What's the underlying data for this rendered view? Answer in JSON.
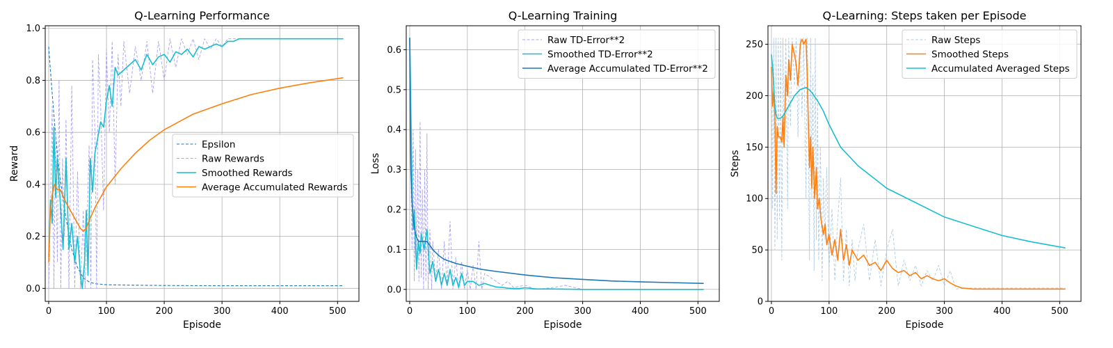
{
  "chart_data": [
    {
      "type": "line",
      "title": "Q-Learning Performance",
      "xlabel": "Episode",
      "ylabel": "Reward",
      "xlim": [
        -6,
        537
      ],
      "ylim": [
        -0.05,
        1.01
      ],
      "xticks": [
        0,
        100,
        200,
        300,
        400,
        500
      ],
      "yticks": [
        0.0,
        0.2,
        0.4,
        0.6,
        0.8,
        1.0
      ],
      "ytick_format": "fixed1",
      "grid": true,
      "legend_position": "center-right",
      "series": [
        {
          "name": "Epsilon",
          "color": "#1f77b4",
          "style": "dashed",
          "x": [
            0,
            5,
            10,
            15,
            20,
            30,
            40,
            50,
            60,
            70,
            80,
            100,
            150,
            200,
            300,
            400,
            510
          ],
          "y": [
            0.93,
            0.78,
            0.64,
            0.52,
            0.42,
            0.27,
            0.15,
            0.08,
            0.04,
            0.025,
            0.018,
            0.014,
            0.012,
            0.011,
            0.01,
            0.01,
            0.01
          ]
        },
        {
          "name": "Raw Rewards",
          "color": "#a7a0f5",
          "style": "dashed-thin",
          "x": [
            0,
            3,
            6,
            9,
            12,
            15,
            18,
            21,
            24,
            27,
            30,
            35,
            40,
            45,
            50,
            55,
            60,
            63,
            66,
            70,
            73,
            76,
            80,
            83,
            86,
            90,
            95,
            100,
            105,
            110,
            115,
            120,
            125,
            130,
            140,
            150,
            160,
            170,
            180,
            190,
            200,
            210,
            220,
            230,
            240,
            250,
            260,
            270,
            280,
            290,
            300,
            310,
            320,
            330,
            340,
            360,
            380,
            400,
            420,
            440,
            460,
            480,
            500,
            510
          ],
          "y": [
            0.0,
            0.3,
            0.7,
            0.0,
            0.6,
            0.1,
            0.8,
            0.0,
            0.5,
            0.2,
            0.65,
            0.0,
            0.78,
            0.0,
            0.45,
            0.0,
            0.3,
            0.0,
            0.2,
            0.55,
            0.0,
            0.88,
            0.6,
            0.0,
            0.9,
            0.7,
            0.3,
            0.92,
            0.6,
            0.95,
            0.4,
            0.9,
            0.7,
            0.95,
            0.75,
            0.93,
            0.8,
            0.95,
            0.75,
            0.95,
            0.8,
            0.96,
            0.85,
            0.96,
            0.9,
            0.96,
            0.88,
            0.96,
            0.92,
            0.96,
            0.93,
            0.96,
            0.96,
            0.96,
            0.96,
            0.96,
            0.96,
            0.96,
            0.96,
            0.96,
            0.96,
            0.96,
            0.96,
            0.96
          ]
        },
        {
          "name": "Smoothed Rewards",
          "color": "#17becf",
          "style": "solid",
          "x": [
            0,
            3,
            6,
            9,
            12,
            15,
            18,
            21,
            25,
            30,
            35,
            40,
            45,
            50,
            55,
            58,
            62,
            65,
            68,
            72,
            76,
            80,
            85,
            90,
            95,
            100,
            105,
            110,
            115,
            120,
            130,
            140,
            150,
            160,
            170,
            180,
            190,
            200,
            210,
            220,
            230,
            240,
            250,
            260,
            270,
            280,
            290,
            300,
            310,
            320,
            330,
            340,
            360,
            380,
            400,
            420,
            440,
            460,
            480,
            500,
            510
          ],
          "y": [
            0.12,
            0.34,
            0.25,
            0.62,
            0.35,
            0.5,
            0.4,
            0.3,
            0.15,
            0.5,
            0.15,
            0.25,
            0.1,
            0.2,
            0.05,
            0.0,
            0.1,
            0.3,
            0.05,
            0.5,
            0.37,
            0.52,
            0.58,
            0.64,
            0.62,
            0.72,
            0.78,
            0.7,
            0.85,
            0.82,
            0.84,
            0.86,
            0.88,
            0.84,
            0.9,
            0.86,
            0.89,
            0.9,
            0.87,
            0.91,
            0.9,
            0.92,
            0.89,
            0.93,
            0.92,
            0.93,
            0.94,
            0.93,
            0.95,
            0.95,
            0.96,
            0.96,
            0.96,
            0.96,
            0.96,
            0.96,
            0.96,
            0.96,
            0.96,
            0.96,
            0.96
          ]
        },
        {
          "name": "Average Accumulated Rewards",
          "color": "#ff7f0e",
          "style": "solid",
          "x": [
            0,
            3,
            6,
            10,
            15,
            20,
            30,
            40,
            50,
            55,
            60,
            65,
            70,
            80,
            90,
            100,
            125,
            150,
            175,
            200,
            250,
            300,
            350,
            400,
            450,
            510
          ],
          "y": [
            0.1,
            0.3,
            0.36,
            0.4,
            0.38,
            0.38,
            0.33,
            0.29,
            0.25,
            0.23,
            0.22,
            0.23,
            0.26,
            0.31,
            0.35,
            0.39,
            0.46,
            0.52,
            0.57,
            0.61,
            0.67,
            0.71,
            0.745,
            0.77,
            0.79,
            0.81
          ]
        }
      ]
    },
    {
      "type": "line",
      "title": "Q-Learning Training",
      "xlabel": "Episode",
      "ylabel": "Loss",
      "xlim": [
        -6,
        537
      ],
      "ylim": [
        -0.03,
        0.66
      ],
      "xticks": [
        0,
        100,
        200,
        300,
        400,
        500
      ],
      "yticks": [
        0.0,
        0.1,
        0.2,
        0.3,
        0.4,
        0.5,
        0.6
      ],
      "ytick_format": "fixed1",
      "grid": true,
      "legend_position": "top-right",
      "series": [
        {
          "name": "Raw TD-Error**2",
          "color": "#a7a0f5",
          "style": "dashed-thin",
          "x": [
            0,
            2,
            4,
            6,
            8,
            10,
            12,
            14,
            16,
            18,
            20,
            22,
            24,
            26,
            28,
            30,
            32,
            35,
            38,
            40,
            45,
            50,
            55,
            60,
            65,
            70,
            75,
            80,
            85,
            90,
            95,
            100,
            105,
            110,
            115,
            120,
            125,
            130,
            140,
            150,
            160,
            170,
            180,
            200,
            220,
            250,
            270,
            300,
            350,
            400,
            450,
            510
          ],
          "y": [
            0.62,
            0.3,
            0.1,
            0.4,
            0.02,
            0.35,
            0.05,
            0.3,
            0.02,
            0.42,
            0.03,
            0.25,
            0.0,
            0.3,
            0.02,
            0.39,
            0.0,
            0.15,
            0.0,
            0.12,
            0.02,
            0.1,
            0.0,
            0.12,
            0.01,
            0.17,
            0.0,
            0.08,
            0.0,
            0.07,
            0.0,
            0.05,
            0.0,
            0.06,
            0.0,
            0.12,
            0.0,
            0.04,
            0.03,
            0.02,
            0.01,
            0.02,
            0.005,
            0.01,
            0.0,
            0.005,
            0.01,
            0.0,
            0.0,
            0.0,
            0.0,
            0.0
          ]
        },
        {
          "name": "Smoothed TD-Error**2",
          "color": "#17becf",
          "style": "solid",
          "x": [
            0,
            1,
            2,
            3,
            4,
            5,
            6,
            8,
            10,
            12,
            15,
            18,
            20,
            25,
            30,
            35,
            40,
            45,
            50,
            55,
            60,
            65,
            70,
            75,
            80,
            85,
            90,
            95,
            100,
            110,
            120,
            130,
            140,
            150,
            160,
            170,
            180,
            190,
            200,
            220,
            250,
            300,
            350,
            400,
            450,
            510
          ],
          "y": [
            0.63,
            0.55,
            0.45,
            0.35,
            0.26,
            0.2,
            0.15,
            0.2,
            0.11,
            0.05,
            0.12,
            0.09,
            0.14,
            0.1,
            0.15,
            0.04,
            0.07,
            0.02,
            0.05,
            0.01,
            0.04,
            0.01,
            0.05,
            0.01,
            0.03,
            0.005,
            0.04,
            0.01,
            0.02,
            0.02,
            0.01,
            0.015,
            0.01,
            0.006,
            0.005,
            0.003,
            0.002,
            0.002,
            0.004,
            0.001,
            0.001,
            0.0,
            0.0,
            0.0,
            0.0,
            0.0
          ]
        },
        {
          "name": "Average Accumulated TD-Error**2",
          "color": "#1f77b4",
          "style": "solid",
          "x": [
            0,
            1,
            2,
            4,
            6,
            8,
            10,
            12,
            15,
            20,
            25,
            30,
            40,
            50,
            60,
            80,
            100,
            125,
            150,
            200,
            250,
            300,
            350,
            400,
            450,
            510
          ],
          "y": [
            0.63,
            0.4,
            0.3,
            0.22,
            0.18,
            0.16,
            0.14,
            0.13,
            0.12,
            0.12,
            0.12,
            0.12,
            0.1,
            0.085,
            0.075,
            0.065,
            0.058,
            0.05,
            0.045,
            0.036,
            0.029,
            0.025,
            0.021,
            0.019,
            0.017,
            0.015
          ]
        }
      ]
    },
    {
      "type": "line",
      "title": "Q-Learning: Steps taken per Episode",
      "xlabel": "Episode",
      "ylabel": "Steps",
      "xlim": [
        -6,
        537
      ],
      "ylim": [
        0,
        268
      ],
      "xticks": [
        0,
        100,
        200,
        300,
        400,
        500
      ],
      "yticks": [
        0,
        50,
        100,
        150,
        200,
        250
      ],
      "ytick_format": "int",
      "grid": true,
      "legend_position": "top-right",
      "series": [
        {
          "name": "Raw Steps",
          "color": "#aecbe6",
          "style": "dashed-thin",
          "x": [
            0,
            2,
            4,
            6,
            8,
            10,
            12,
            14,
            16,
            18,
            20,
            22,
            25,
            28,
            30,
            33,
            36,
            40,
            43,
            46,
            50,
            53,
            56,
            60,
            62,
            64,
            66,
            68,
            70,
            72,
            74,
            76,
            78,
            80,
            82,
            85,
            88,
            90,
            93,
            96,
            100,
            105,
            110,
            115,
            120,
            125,
            130,
            135,
            140,
            145,
            150,
            160,
            170,
            180,
            190,
            200,
            210,
            220,
            230,
            240,
            250,
            260,
            270,
            280,
            290,
            300,
            310,
            320,
            340,
            380,
            420,
            460,
            510
          ],
          "y": [
            256,
            90,
            256,
            50,
            256,
            60,
            256,
            80,
            256,
            40,
            256,
            150,
            256,
            90,
            256,
            170,
            256,
            210,
            256,
            160,
            256,
            180,
            256,
            100,
            256,
            160,
            40,
            256,
            100,
            220,
            30,
            256,
            60,
            200,
            40,
            150,
            20,
            120,
            60,
            130,
            30,
            90,
            20,
            80,
            120,
            20,
            70,
            15,
            60,
            20,
            50,
            75,
            20,
            60,
            15,
            50,
            70,
            15,
            40,
            20,
            35,
            15,
            30,
            20,
            35,
            15,
            30,
            12,
            13,
            13,
            13,
            13,
            13
          ]
        },
        {
          "name": "Smoothed Steps",
          "color": "#ff7f0e",
          "style": "solid",
          "x": [
            0,
            2,
            4,
            6,
            8,
            10,
            12,
            15,
            18,
            20,
            22,
            25,
            28,
            30,
            33,
            36,
            40,
            43,
            46,
            50,
            53,
            56,
            60,
            62,
            64,
            66,
            68,
            70,
            72,
            75,
            78,
            80,
            83,
            86,
            90,
            93,
            96,
            100,
            105,
            110,
            115,
            120,
            125,
            130,
            135,
            140,
            150,
            160,
            170,
            180,
            190,
            200,
            210,
            220,
            230,
            240,
            250,
            260,
            270,
            280,
            290,
            300,
            310,
            320,
            330,
            350,
            400,
            450,
            510
          ],
          "y": [
            228,
            190,
            205,
            180,
            105,
            170,
            160,
            160,
            155,
            180,
            150,
            220,
            200,
            235,
            215,
            250,
            240,
            230,
            210,
            250,
            255,
            250,
            255,
            220,
            175,
            130,
            160,
            110,
            150,
            100,
            130,
            90,
            100,
            80,
            65,
            75,
            55,
            65,
            45,
            60,
            40,
            70,
            40,
            55,
            35,
            50,
            40,
            45,
            35,
            38,
            30,
            40,
            32,
            28,
            30,
            25,
            28,
            22,
            25,
            22,
            20,
            22,
            18,
            15,
            13,
            12,
            12,
            12,
            12
          ]
        },
        {
          "name": "Accumulated Averaged Steps",
          "color": "#17becf",
          "style": "solid",
          "x": [
            0,
            2,
            4,
            6,
            8,
            10,
            15,
            20,
            30,
            40,
            50,
            60,
            65,
            70,
            80,
            90,
            100,
            120,
            150,
            200,
            250,
            300,
            350,
            400,
            450,
            510
          ],
          "y": [
            240,
            228,
            210,
            190,
            182,
            178,
            178,
            180,
            190,
            200,
            206,
            208,
            206,
            203,
            195,
            185,
            172,
            150,
            132,
            110,
            96,
            82,
            73,
            64,
            58,
            52
          ]
        }
      ]
    }
  ]
}
